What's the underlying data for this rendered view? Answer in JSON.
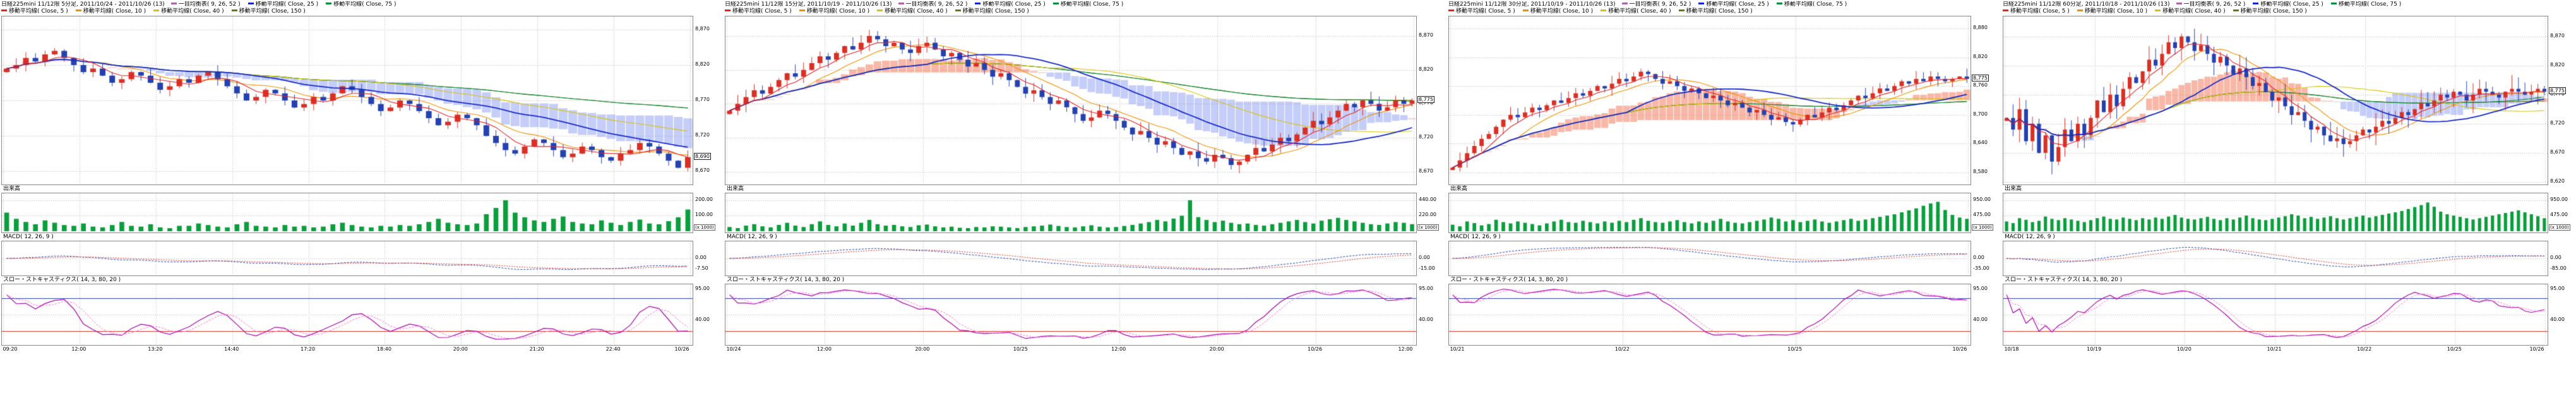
{
  "colors": {
    "up": "#d93025",
    "down": "#2441b0",
    "volume": "#0a9e3c",
    "cloud_bull": "rgba(242,112,80,0.50)",
    "cloud_bear": "rgba(110,130,240,0.40)",
    "ma5": "#e32222",
    "ma10": "#f09000",
    "ma25": "#1428c8",
    "ma40": "#d8c400",
    "ma75": "#0a8c3c",
    "ma150": "#6a7a00",
    "macd": "#2441b0",
    "macd_signal": "#d93025",
    "stoch_k": "#a800a8",
    "stoch_d": "#ff6ad5",
    "stoch_high": "#2441b0",
    "stoch_low": "#d93025",
    "grid": "#b8b8b8",
    "border": "#8a8a8a",
    "text": "#000000"
  },
  "panels": [
    {
      "title": "日経225mini 11/12限 5分足, 2011/10/24 - 2011/10/26 (13)",
      "legend_row1": [
        {
          "label": "一目均衡表( 9, 26, 52 )",
          "color": "#b060b0"
        },
        {
          "label": "移動平均線( Close, 25 )",
          "color": "#1428c8"
        },
        {
          "label": "移動平均線( Close, 75 )",
          "color": "#0a8c3c"
        }
      ],
      "legend_row2": [
        {
          "label": "移動平均線( Close, 5 )",
          "color": "#e32222"
        },
        {
          "label": "移動平均線( Close, 10 )",
          "color": "#f09000"
        },
        {
          "label": "移動平均線( Close, 40 )",
          "color": "#d8c400"
        },
        {
          "label": "移動平均線( Close, 150 )",
          "color": "#6a7a00"
        }
      ],
      "volume_label": "出来高",
      "macd_label": "MACD( 12, 26, 9 )",
      "stoch_label": "スロー・ストキャスティクス( 14, 3, 80, 20 )"
    },
    {
      "title": "日経225mini 11/12限 15分足, 2011/10/19 - 2011/10/26 (13)",
      "legend_row1": [
        {
          "label": "一目均衡表( 9, 26, 52 )",
          "color": "#b060b0"
        },
        {
          "label": "移動平均線( Close, 25 )",
          "color": "#1428c8"
        },
        {
          "label": "移動平均線( Close, 75 )",
          "color": "#0a8c3c"
        }
      ],
      "legend_row2": [
        {
          "label": "移動平均線( Close, 5 )",
          "color": "#e32222"
        },
        {
          "label": "移動平均線( Close, 10 )",
          "color": "#f09000"
        },
        {
          "label": "移動平均線( Close, 40 )",
          "color": "#d8c400"
        },
        {
          "label": "移動平均線( Close, 150 )",
          "color": "#6a7a00"
        }
      ],
      "volume_label": "出来高",
      "macd_label": "MACD( 12, 26, 9 )",
      "stoch_label": "スロー・ストキャスティクス( 14, 3, 80, 20 )"
    },
    {
      "title": "日経225mini 11/12限 30分足, 2011/10/19 - 2011/10/26 (13)",
      "legend_row1": [
        {
          "label": "一目均衡表( 9, 26, 52 )",
          "color": "#b060b0"
        },
        {
          "label": "移動平均線( Close, 25 )",
          "color": "#1428c8"
        },
        {
          "label": "移動平均線( Close, 75 )",
          "color": "#0a8c3c"
        }
      ],
      "legend_row2": [
        {
          "label": "移動平均線( Close, 5 )",
          "color": "#e32222"
        },
        {
          "label": "移動平均線( Close, 10 )",
          "color": "#f09000"
        },
        {
          "label": "移動平均線( Close, 40 )",
          "color": "#d8c400"
        },
        {
          "label": "移動平均線( Close, 150 )",
          "color": "#6a7a00"
        }
      ],
      "volume_label": "出来高",
      "macd_label": "MACD( 12, 26, 9 )",
      "stoch_label": "スロー・ストキャスティクス( 14, 3, 80, 20 )"
    },
    {
      "title": "日経225mini 11/12限 60分足, 2011/10/18 - 2011/10/26 (13)",
      "legend_row1": [
        {
          "label": "一目均衡表( 9, 26, 52 )",
          "color": "#b060b0"
        },
        {
          "label": "移動平均線( Close, 25 )",
          "color": "#1428c8"
        },
        {
          "label": "移動平均線( Close, 75 )",
          "color": "#0a8c3c"
        }
      ],
      "legend_row2": [
        {
          "label": "移動平均線( Close, 5 )",
          "color": "#e32222"
        },
        {
          "label": "移動平均線( Close, 10 )",
          "color": "#f09000"
        },
        {
          "label": "移動平均線( Close, 40 )",
          "color": "#d8c400"
        },
        {
          "label": "移動平均線( Close, 150 )",
          "color": "#6a7a00"
        }
      ],
      "volume_label": "出来高",
      "macd_label": "MACD( 12, 26, 9 )",
      "stoch_label": "スロー・ストキャスティクス( 14, 3, 80, 20 )"
    }
  ],
  "chart_data": [
    {
      "type": "candlestick",
      "timeframe": "5分足",
      "period": "2011/10/24 - 2011/10/26",
      "ylim": [
        8655,
        8885
      ],
      "yticks": [
        8870,
        8820,
        8770,
        8720,
        8670
      ],
      "yticks_labels": [
        "8,870",
        "8,820",
        "8,770",
        "8,720",
        "8,670"
      ],
      "last_price_label": "8,690",
      "closes": [
        8815,
        8820,
        8830,
        8825,
        8835,
        8840,
        8830,
        8820,
        8810,
        8815,
        8805,
        8795,
        8800,
        8810,
        8805,
        8795,
        8785,
        8790,
        8800,
        8795,
        8805,
        8810,
        8800,
        8790,
        8780,
        8770,
        8775,
        8785,
        8780,
        8770,
        8760,
        8765,
        8775,
        8770,
        8780,
        8790,
        8785,
        8775,
        8765,
        8755,
        8760,
        8770,
        8765,
        8755,
        8745,
        8735,
        8740,
        8750,
        8745,
        8735,
        8720,
        8710,
        8700,
        8695,
        8705,
        8715,
        8710,
        8700,
        8690,
        8695,
        8705,
        8700,
        8690,
        8685,
        8695,
        8700,
        8710,
        8705,
        8695,
        8685,
        8675,
        8690
      ],
      "volumes": [
        120,
        80,
        60,
        45,
        70,
        55,
        40,
        35,
        50,
        30,
        25,
        40,
        60,
        35,
        30,
        45,
        25,
        20,
        35,
        35,
        50,
        40,
        30,
        25,
        45,
        60,
        35,
        30,
        25,
        40,
        30,
        35,
        25,
        30,
        45,
        55,
        40,
        30,
        25,
        35,
        30,
        40,
        35,
        45,
        60,
        80,
        55,
        45,
        40,
        50,
        110,
        150,
        200,
        120,
        90,
        70,
        60,
        80,
        95,
        60,
        50,
        45,
        70,
        55,
        40,
        60,
        75,
        50,
        45,
        65,
        90,
        140
      ],
      "volume_ticks": {
        "values": [
          200,
          100
        ],
        "labels": [
          "200.00",
          "100.00"
        ],
        "unit": "(x 1000)"
      },
      "macd_ticks": [
        "0.00",
        "-7.50"
      ],
      "stoch_ticks": {
        "values": [
          95,
          40
        ],
        "labels": [
          "95.00",
          "40.00"
        ]
      },
      "time_labels": [
        "09:20",
        "12:00",
        "13:20",
        "14:40",
        "17:20",
        "18:40",
        "20:00",
        "21:20",
        "22:40",
        "10/26"
      ]
    },
    {
      "type": "candlestick",
      "timeframe": "15分足",
      "period": "2011/10/19 - 2011/10/26",
      "ylim": [
        8655,
        8895
      ],
      "yticks": [
        8870,
        8820,
        8770,
        8720,
        8670
      ],
      "yticks_labels": [
        "8,870",
        "8,820",
        "8,770",
        "8,720",
        "8,670"
      ],
      "last_price_label": "8,775",
      "closes": [
        8760,
        8770,
        8780,
        8790,
        8785,
        8795,
        8805,
        8815,
        8810,
        8820,
        8830,
        8840,
        8835,
        8845,
        8855,
        8850,
        8860,
        8870,
        8865,
        8855,
        8860,
        8850,
        8845,
        8855,
        8860,
        8850,
        8840,
        8845,
        8835,
        8825,
        8830,
        8820,
        8810,
        8815,
        8805,
        8795,
        8785,
        8790,
        8780,
        8770,
        8775,
        8765,
        8755,
        8745,
        8750,
        8760,
        8755,
        8745,
        8735,
        8725,
        8730,
        8720,
        8710,
        8715,
        8705,
        8695,
        8700,
        8690,
        8685,
        8695,
        8690,
        8680,
        8685,
        8695,
        8705,
        8700,
        8710,
        8720,
        8715,
        8725,
        8735,
        8745,
        8740,
        8750,
        8760,
        8770,
        8765,
        8775,
        8770,
        8760,
        8765,
        8775,
        8770,
        8775
      ],
      "volumes": [
        60,
        45,
        80,
        100,
        70,
        55,
        90,
        120,
        80,
        60,
        100,
        140,
        90,
        70,
        110,
        80,
        120,
        160,
        100,
        80,
        90,
        70,
        60,
        85,
        95,
        70,
        55,
        65,
        50,
        45,
        60,
        55,
        70,
        65,
        55,
        45,
        60,
        70,
        80,
        95,
        75,
        60,
        55,
        70,
        85,
        65,
        55,
        60,
        75,
        90,
        110,
        130,
        160,
        140,
        180,
        220,
        440,
        200,
        160,
        130,
        150,
        120,
        100,
        110,
        90,
        80,
        100,
        120,
        140,
        160,
        130,
        110,
        150,
        170,
        190,
        160,
        140,
        120,
        100,
        90,
        110,
        130,
        120,
        100
      ],
      "volume_ticks": {
        "values": [
          440,
          220
        ],
        "labels": [
          "440.00",
          "220.00"
        ],
        "unit": "(x 1000)"
      },
      "macd_ticks": [
        "0.00",
        "-15.00"
      ],
      "stoch_ticks": {
        "values": [
          95,
          40
        ],
        "labels": [
          "95.00",
          "40.00"
        ]
      },
      "time_labels": [
        "10/24",
        "12:00",
        "20:00",
        "10/25",
        "12:00",
        "20:00",
        "10/26",
        "12:00"
      ]
    },
    {
      "type": "candlestick",
      "timeframe": "30分足",
      "period": "2011/10/19 - 2011/10/26",
      "ylim": [
        8560,
        8900
      ],
      "yticks": [
        8880,
        8820,
        8760,
        8700,
        8640,
        8580
      ],
      "yticks_labels": [
        "8,880",
        "8,820",
        "8,760",
        "8,700",
        "8,640",
        "8,580"
      ],
      "last_price_label": "8,775",
      "closes": [
        8590,
        8605,
        8620,
        8635,
        8650,
        8660,
        8675,
        8690,
        8700,
        8695,
        8705,
        8715,
        8710,
        8720,
        8730,
        8725,
        8735,
        8745,
        8740,
        8750,
        8760,
        8755,
        8765,
        8775,
        8770,
        8780,
        8790,
        8785,
        8775,
        8765,
        8770,
        8760,
        8750,
        8755,
        8745,
        8735,
        8740,
        8730,
        8720,
        8725,
        8715,
        8705,
        8710,
        8700,
        8690,
        8695,
        8685,
        8680,
        8690,
        8700,
        8695,
        8705,
        8715,
        8710,
        8720,
        8730,
        8740,
        8735,
        8745,
        8755,
        8750,
        8760,
        8770,
        8765,
        8775,
        8770,
        8780,
        8775,
        8770,
        8775,
        8780,
        8775
      ],
      "volumes": [
        200,
        150,
        300,
        250,
        180,
        220,
        350,
        280,
        240,
        300,
        260,
        220,
        180,
        240,
        300,
        350,
        280,
        260,
        320,
        280,
        240,
        300,
        260,
        320,
        280,
        350,
        400,
        320,
        280,
        260,
        300,
        340,
        280,
        240,
        300,
        260,
        320,
        380,
        300,
        260,
        240,
        280,
        320,
        360,
        420,
        380,
        300,
        340,
        280,
        320,
        360,
        300,
        260,
        300,
        340,
        380,
        320,
        360,
        400,
        440,
        480,
        520,
        580,
        640,
        700,
        780,
        850,
        900,
        650,
        500,
        420,
        380
      ],
      "volume_ticks": {
        "values": [
          950,
          475
        ],
        "labels": [
          "950.00",
          "475.00"
        ],
        "unit": "(x 1000)"
      },
      "macd_ticks": [
        "0.00",
        "-35.00"
      ],
      "stoch_ticks": {
        "values": [
          95,
          40
        ],
        "labels": [
          "95.00",
          "40.00"
        ]
      },
      "time_labels": [
        "10/21",
        "10/22",
        "10/25",
        "10/26"
      ]
    },
    {
      "type": "candlestick",
      "timeframe": "60分足",
      "period": "2011/10/18 - 2011/10/26",
      "ylim": [
        8620,
        8900
      ],
      "yticks": [
        8870,
        8820,
        8770,
        8720,
        8670,
        8620
      ],
      "yticks_labels": [
        "8,870",
        "8,820",
        "8,770",
        "8,720",
        "8,670",
        "8,620"
      ],
      "last_price_label": "8,775",
      "closes": [
        8730,
        8710,
        8745,
        8690,
        8720,
        8670,
        8700,
        8655,
        8680,
        8710,
        8690,
        8720,
        8700,
        8730,
        8760,
        8740,
        8770,
        8750,
        8780,
        8800,
        8790,
        8810,
        8830,
        8820,
        8840,
        8860,
        8850,
        8870,
        8860,
        8845,
        8855,
        8840,
        8825,
        8835,
        8820,
        8805,
        8815,
        8800,
        8785,
        8790,
        8775,
        8760,
        8765,
        8750,
        8735,
        8740,
        8725,
        8710,
        8715,
        8700,
        8690,
        8695,
        8685,
        8690,
        8700,
        8710,
        8705,
        8715,
        8725,
        8720,
        8730,
        8740,
        8735,
        8745,
        8755,
        8750,
        8760,
        8770,
        8765,
        8775,
        8770,
        8760,
        8770,
        8780,
        8775,
        8770,
        8765,
        8775,
        8780,
        8775,
        8770,
        8775,
        8780,
        8775
      ],
      "volumes": [
        300,
        250,
        400,
        350,
        280,
        320,
        450,
        380,
        340,
        400,
        360,
        320,
        280,
        340,
        400,
        450,
        380,
        360,
        420,
        380,
        340,
        400,
        360,
        420,
        380,
        450,
        500,
        420,
        380,
        360,
        400,
        440,
        380,
        340,
        400,
        360,
        420,
        480,
        400,
        360,
        340,
        380,
        420,
        460,
        520,
        480,
        400,
        440,
        380,
        420,
        460,
        400,
        360,
        400,
        440,
        480,
        420,
        460,
        500,
        540,
        580,
        620,
        680,
        740,
        800,
        880,
        750,
        600,
        520,
        480,
        440,
        400,
        360,
        400,
        440,
        480,
        520,
        560,
        600,
        640,
        580,
        520,
        460,
        400
      ],
      "volume_ticks": {
        "values": [
          950,
          475
        ],
        "labels": [
          "950.00",
          "475.00"
        ],
        "unit": "(x 1000)"
      },
      "macd_ticks": [
        "0.00",
        "-85.00"
      ],
      "stoch_ticks": {
        "values": [
          95,
          40
        ],
        "labels": [
          "95.00",
          "40.00"
        ]
      },
      "time_labels": [
        "10/18",
        "10/19",
        "10/20",
        "10/21",
        "10/22",
        "10/25",
        "10/26"
      ]
    }
  ]
}
